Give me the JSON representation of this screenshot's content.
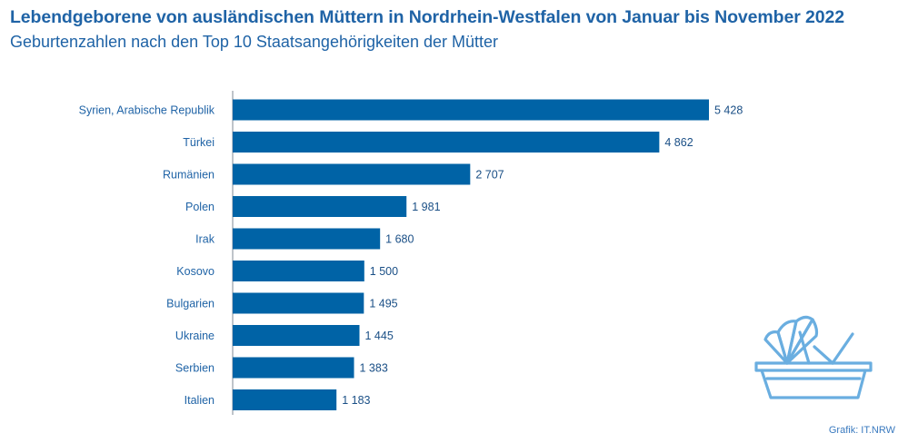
{
  "title": "Lebendgeborene von ausländischen Müttern in Nordrhein-Westfalen von Januar bis November 2022",
  "subtitle": "Geburtenzahlen nach den Top 10 Staatsangehörigkeiten der Mütter",
  "source": "Grafik: IT.NRW",
  "colors": {
    "bar": "#0063a6",
    "text": "#1f63a6",
    "icon": "#6aaee0"
  },
  "icon": "baby-carriage-icon",
  "chart_data": {
    "type": "bar",
    "orientation": "horizontal",
    "categories": [
      "Syrien, Arabische Republik",
      "Türkei",
      "Rumänien",
      "Polen",
      "Irak",
      "Kosovo",
      "Bulgarien",
      "Ukraine",
      "Serbien",
      "Italien"
    ],
    "values": [
      5428,
      4862,
      2707,
      1981,
      1680,
      1500,
      1495,
      1445,
      1383,
      1183
    ],
    "value_labels": [
      "5 428",
      "4 862",
      "2 707",
      "1 981",
      "1 680",
      "1 500",
      "1 495",
      "1 445",
      "1 383",
      "1 183"
    ],
    "xlim": [
      0,
      5428
    ],
    "grid": false,
    "legend": "none"
  }
}
